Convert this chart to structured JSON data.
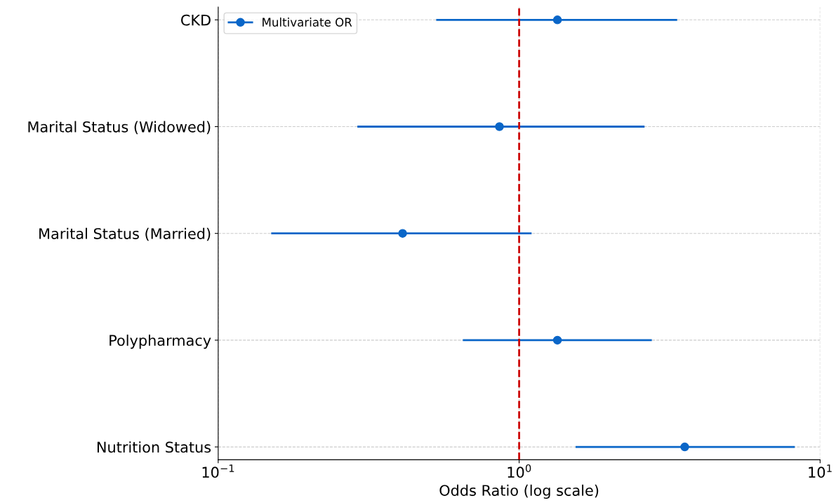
{
  "chart_data": {
    "type": "scatter",
    "orientation": "horizontal",
    "xlabel": "Odds Ratio (log scale)",
    "categories": [
      "CKD",
      "Marital Status (Widowed)",
      "Marital Status (Married)",
      "Polypharmacy",
      "Nutrition Status"
    ],
    "series": [
      {
        "name": "Multivariate OR",
        "color": "#0a66c8",
        "values": [
          1.34,
          0.86,
          0.41,
          1.34,
          3.55
        ],
        "errors": [
          [
            0.53,
            3.35
          ],
          [
            0.29,
            2.61
          ],
          [
            0.15,
            1.1
          ],
          [
            0.65,
            2.76
          ],
          [
            1.54,
            8.24
          ]
        ]
      }
    ],
    "log": "x",
    "xlim": [
      0.1,
      10
    ],
    "xticks": [
      {
        "value": 0.1,
        "label": "10$^{−1}$"
      },
      {
        "value": 1,
        "label": "10$^{0}$"
      },
      {
        "value": 10,
        "label": "10$^{1}$"
      }
    ],
    "ref_lines": [
      {
        "axis": "x",
        "value": 1,
        "label": null,
        "color": "#cc0000",
        "line_style": "dashed"
      }
    ],
    "grid": true,
    "legend": "top left",
    "marker": "circle"
  }
}
